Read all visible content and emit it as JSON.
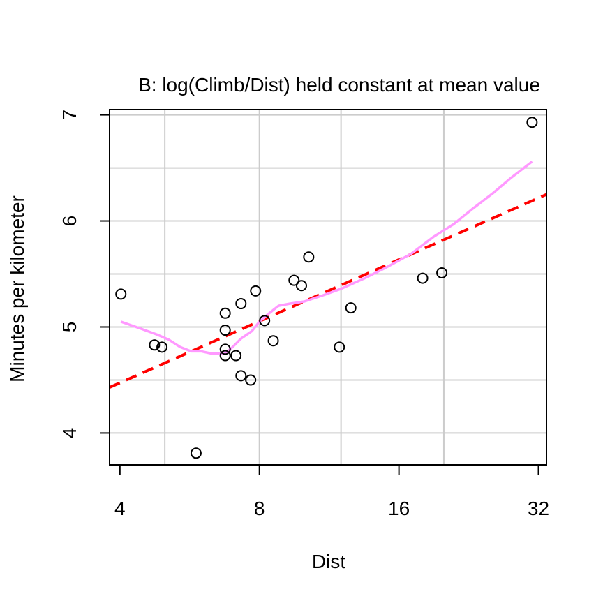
{
  "chart_data": {
    "type": "scatter",
    "title": "B: log(Climb/Dist) held constant at mean value",
    "xlabel": "Dist",
    "ylabel": "Minutes per kilometer",
    "x_scale": "log2",
    "xlim": [
      3.8,
      33.3
    ],
    "ylim": [
      3.7,
      7.05
    ],
    "x_ticks": [
      4,
      8,
      16,
      32
    ],
    "x_tick_labels": [
      "4",
      "8",
      "16",
      "32"
    ],
    "y_ticks": [
      4,
      5,
      6,
      7
    ],
    "y_tick_labels": [
      "4",
      "5",
      "6",
      "7"
    ],
    "x_grid": [
      5,
      8,
      12,
      20
    ],
    "y_grid": [
      4,
      4.5,
      5,
      5.5,
      6,
      6.5,
      7
    ],
    "grid": true,
    "colors": {
      "grid": "#cccccc",
      "points": "#000000",
      "fit": "#ff0000",
      "smooth": "#ff99ff"
    },
    "points": [
      {
        "x": 4.02,
        "y": 5.31
      },
      {
        "x": 4.75,
        "y": 4.83
      },
      {
        "x": 4.93,
        "y": 4.81
      },
      {
        "x": 5.84,
        "y": 3.81
      },
      {
        "x": 6.75,
        "y": 5.13
      },
      {
        "x": 6.75,
        "y": 4.97
      },
      {
        "x": 6.75,
        "y": 4.79
      },
      {
        "x": 6.75,
        "y": 4.73
      },
      {
        "x": 7.12,
        "y": 4.73
      },
      {
        "x": 7.3,
        "y": 5.22
      },
      {
        "x": 7.3,
        "y": 4.54
      },
      {
        "x": 7.66,
        "y": 4.5
      },
      {
        "x": 7.85,
        "y": 5.34
      },
      {
        "x": 8.21,
        "y": 5.06
      },
      {
        "x": 8.57,
        "y": 4.87
      },
      {
        "x": 9.5,
        "y": 5.44
      },
      {
        "x": 9.86,
        "y": 5.39
      },
      {
        "x": 10.22,
        "y": 5.66
      },
      {
        "x": 11.9,
        "y": 4.81
      },
      {
        "x": 12.6,
        "y": 5.18
      },
      {
        "x": 18.0,
        "y": 5.46
      },
      {
        "x": 19.8,
        "y": 5.51
      },
      {
        "x": 31.0,
        "y": 6.93
      }
    ],
    "series": [
      {
        "kind": "linear fit",
        "style": "dashed",
        "x": [
          3.8,
          33.3
        ],
        "y": [
          4.43,
          6.25
        ]
      },
      {
        "kind": "smooth",
        "style": "solid",
        "x": [
          4.02,
          4.4,
          4.8,
          5.1,
          5.4,
          5.7,
          6.0,
          6.3,
          6.75,
          7.0,
          7.3,
          7.7,
          8.0,
          8.4,
          8.8,
          9.3,
          10.0,
          11.0,
          12.0,
          13.5,
          15.0,
          17.0,
          19.0,
          21.0,
          23.0,
          25.5,
          28.0,
          31.0
        ],
        "y": [
          5.05,
          4.99,
          4.93,
          4.88,
          4.81,
          4.77,
          4.77,
          4.75,
          4.75,
          4.81,
          4.89,
          4.96,
          5.05,
          5.13,
          5.2,
          5.22,
          5.24,
          5.3,
          5.36,
          5.46,
          5.56,
          5.69,
          5.85,
          5.97,
          6.11,
          6.26,
          6.41,
          6.56
        ]
      }
    ]
  }
}
